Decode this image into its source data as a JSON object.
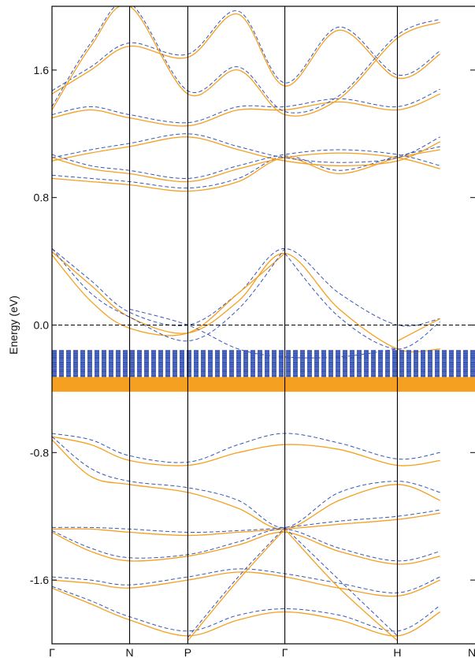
{
  "chart_data": {
    "type": "line",
    "title": "",
    "xlabel": "",
    "ylabel": "Energy (eV)",
    "ylim": [
      -2.0,
      2.0
    ],
    "grid": false,
    "legend": "none",
    "x_ticks": [
      {
        "label": "Γ",
        "x": 0.0
      },
      {
        "label": "N",
        "x": 1.0
      },
      {
        "label": "P",
        "x": 1.75
      },
      {
        "label": "Γ",
        "x": 3.0
      },
      {
        "label": "H",
        "x": 4.45
      },
      {
        "label": "N",
        "x": 5.45
      }
    ],
    "y_ticks": [
      {
        "label": "1.6",
        "value": 1.6
      },
      {
        "label": "0.8",
        "value": 0.8
      },
      {
        "label": "0.0",
        "value": 0.0
      },
      {
        "label": "-0.8",
        "value": -0.8
      },
      {
        "label": "-1.6",
        "value": -1.6
      }
    ],
    "fermi_level": 0.0,
    "colors": {
      "orange": "#f5a020",
      "blue": "#3a56b4",
      "axis": "#000000"
    },
    "series": [
      {
        "color": "orange",
        "style": "solid",
        "x": [
          0,
          0.5,
          1.0,
          1.75,
          2.4,
          3.0,
          3.7,
          4.45,
          5.0
        ],
        "y": [
          0.46,
          0.25,
          0.05,
          -0.05,
          0.15,
          0.45,
          0.1,
          -0.15,
          -0.15
        ]
      },
      {
        "color": "blue",
        "style": "dashed",
        "x": [
          0,
          0.5,
          1.0,
          1.75,
          2.4,
          3.0,
          3.7,
          4.45,
          5.0
        ],
        "y": [
          0.48,
          0.28,
          0.08,
          0.0,
          0.2,
          0.48,
          0.2,
          0.0,
          0.04
        ]
      },
      {
        "color": "orange",
        "style": "solid",
        "x": [
          0,
          0.5,
          1.0,
          1.75,
          2.4,
          3.0
        ],
        "y": [
          0.44,
          0.15,
          -0.02,
          -0.05,
          0.2,
          0.45
        ]
      },
      {
        "color": "blue",
        "style": "dashed",
        "x": [
          0,
          0.5,
          1.0,
          1.75,
          2.4,
          3.0
        ],
        "y": [
          0.48,
          0.2,
          0.05,
          -0.1,
          0.1,
          0.48
        ]
      },
      {
        "color": "blue",
        "style": "dashed",
        "x": [
          3.0,
          3.7,
          4.45,
          5.0
        ],
        "y": [
          0.45,
          0.05,
          -0.15,
          0.02
        ]
      },
      {
        "color": "orange",
        "style": "solid",
        "x": [
          4.45,
          5.0
        ],
        "y": [
          -0.1,
          0.04
        ]
      },
      {
        "color": "blue",
        "style": "dashed",
        "x": [
          1.0,
          1.75,
          2.4,
          3.0,
          3.7,
          4.45
        ],
        "y": [
          0.1,
          0.0,
          -0.15,
          -0.2,
          -0.2,
          -0.15
        ]
      },
      {
        "color": "orange",
        "style": "solid",
        "x": [
          0,
          0.5,
          1.0,
          1.75,
          2.4,
          3.0,
          3.7,
          4.45,
          5.0
        ],
        "y": [
          -0.7,
          -0.75,
          -0.85,
          -0.88,
          -0.8,
          -0.75,
          -0.78,
          -0.88,
          -0.85
        ]
      },
      {
        "color": "blue",
        "style": "dashed",
        "x": [
          0,
          0.5,
          1.0,
          1.75,
          2.4,
          3.0,
          3.7,
          4.45,
          5.0
        ],
        "y": [
          -0.68,
          -0.72,
          -0.82,
          -0.86,
          -0.75,
          -0.68,
          -0.74,
          -0.84,
          -0.8
        ]
      },
      {
        "color": "orange",
        "style": "solid",
        "x": [
          0,
          0.5,
          1.0,
          1.75,
          2.4,
          3.0,
          3.7,
          4.45,
          5.0
        ],
        "y": [
          -0.72,
          -0.95,
          -1.0,
          -1.05,
          -1.15,
          -1.28,
          -1.1,
          -1.0,
          -1.1
        ]
      },
      {
        "color": "blue",
        "style": "dashed",
        "x": [
          0,
          0.5,
          1.0,
          1.75,
          2.4,
          3.0,
          3.7,
          4.45,
          5.0
        ],
        "y": [
          -0.7,
          -0.9,
          -0.98,
          -1.02,
          -1.1,
          -1.27,
          -1.05,
          -0.98,
          -1.05
        ]
      },
      {
        "color": "orange",
        "style": "solid",
        "x": [
          0,
          0.5,
          1.0,
          1.75,
          2.4,
          3.0,
          3.7,
          4.45,
          5.0
        ],
        "y": [
          -1.28,
          -1.28,
          -1.3,
          -1.32,
          -1.3,
          -1.28,
          -1.25,
          -1.22,
          -1.18
        ]
      },
      {
        "color": "blue",
        "style": "dashed",
        "x": [
          0,
          0.5,
          1.0,
          1.75,
          2.4,
          3.0,
          3.7,
          4.45,
          5.0
        ],
        "y": [
          -1.27,
          -1.27,
          -1.28,
          -1.3,
          -1.29,
          -1.27,
          -1.23,
          -1.2,
          -1.16
        ]
      },
      {
        "color": "orange",
        "style": "solid",
        "x": [
          0,
          0.5,
          1.0,
          1.75,
          2.4,
          3.0,
          3.7,
          4.45,
          5.0
        ],
        "y": [
          -1.3,
          -1.42,
          -1.48,
          -1.45,
          -1.38,
          -1.3,
          -1.42,
          -1.5,
          -1.45
        ]
      },
      {
        "color": "blue",
        "style": "dashed",
        "x": [
          0,
          0.5,
          1.0,
          1.75,
          2.4,
          3.0,
          3.7,
          4.45,
          5.0
        ],
        "y": [
          -1.29,
          -1.4,
          -1.46,
          -1.44,
          -1.36,
          -1.28,
          -1.4,
          -1.48,
          -1.42
        ]
      },
      {
        "color": "orange",
        "style": "solid",
        "x": [
          0,
          0.5,
          1.0,
          1.75,
          2.4,
          3.0,
          3.7,
          4.45,
          5.0
        ],
        "y": [
          -1.6,
          -1.62,
          -1.65,
          -1.6,
          -1.55,
          -1.58,
          -1.65,
          -1.7,
          -1.6
        ]
      },
      {
        "color": "blue",
        "style": "dashed",
        "x": [
          0,
          0.5,
          1.0,
          1.75,
          2.4,
          3.0,
          3.7,
          4.45,
          5.0
        ],
        "y": [
          -1.58,
          -1.6,
          -1.63,
          -1.58,
          -1.53,
          -1.56,
          -1.62,
          -1.68,
          -1.58
        ]
      },
      {
        "color": "orange",
        "style": "solid",
        "x": [
          0,
          0.5,
          1.0,
          1.75,
          2.4,
          3.0,
          3.7,
          4.45,
          5.0
        ],
        "y": [
          -1.65,
          -1.75,
          -1.85,
          -1.95,
          -1.85,
          -1.8,
          -1.85,
          -1.95,
          -1.8
        ]
      },
      {
        "color": "blue",
        "style": "dashed",
        "x": [
          0,
          0.5,
          1.0,
          1.75,
          2.4,
          3.0,
          3.7,
          4.45,
          5.0
        ],
        "y": [
          -1.64,
          -1.73,
          -1.83,
          -1.92,
          -1.82,
          -1.78,
          -1.82,
          -1.92,
          -1.76
        ]
      },
      {
        "color": "orange",
        "style": "solid",
        "x": [
          3.0,
          3.7,
          4.45
        ],
        "y": [
          -1.28,
          -1.65,
          -1.98
        ]
      },
      {
        "color": "blue",
        "style": "dashed",
        "x": [
          3.0,
          3.7,
          4.45
        ],
        "y": [
          -1.27,
          -1.6,
          -1.95
        ]
      },
      {
        "color": "orange",
        "style": "solid",
        "x": [
          1.75,
          2.4,
          3.0
        ],
        "y": [
          -1.98,
          -1.6,
          -1.28
        ]
      },
      {
        "color": "blue",
        "style": "dashed",
        "x": [
          1.75,
          2.4,
          3.0
        ],
        "y": [
          -1.96,
          -1.58,
          -1.27
        ]
      },
      {
        "color": "orange",
        "style": "solid",
        "x": [
          0,
          0.5,
          1.0,
          1.75,
          2.4,
          3.0,
          3.7,
          4.45,
          5.0
        ],
        "y": [
          0.92,
          0.9,
          0.88,
          0.84,
          0.9,
          1.05,
          0.95,
          1.05,
          1.1
        ]
      },
      {
        "color": "blue",
        "style": "dashed",
        "x": [
          0,
          0.5,
          1.0,
          1.75,
          2.4,
          3.0,
          3.7,
          4.45,
          5.0
        ],
        "y": [
          0.94,
          0.92,
          0.9,
          0.86,
          0.92,
          1.06,
          0.97,
          1.06,
          1.12
        ]
      },
      {
        "color": "orange",
        "style": "solid",
        "x": [
          0,
          0.5,
          1.0,
          1.75,
          2.4,
          3.0,
          3.7,
          4.45,
          5.0
        ],
        "y": [
          1.03,
          1.08,
          1.12,
          1.18,
          1.1,
          1.03,
          1.0,
          1.03,
          1.15
        ]
      },
      {
        "color": "blue",
        "style": "dashed",
        "x": [
          0,
          0.5,
          1.0,
          1.75,
          2.4,
          3.0,
          3.7,
          4.45,
          5.0
        ],
        "y": [
          1.05,
          1.1,
          1.14,
          1.2,
          1.12,
          1.05,
          1.02,
          1.05,
          1.18
        ]
      },
      {
        "color": "orange",
        "style": "solid",
        "x": [
          0,
          0.5,
          1.0,
          1.75,
          2.4,
          3.0,
          3.7,
          4.45,
          5.0
        ],
        "y": [
          1.05,
          0.98,
          0.95,
          0.9,
          0.98,
          1.05,
          1.08,
          1.05,
          0.98
        ]
      },
      {
        "color": "blue",
        "style": "dashed",
        "x": [
          0,
          0.5,
          1.0,
          1.75,
          2.4,
          3.0,
          3.7,
          4.45,
          5.0
        ],
        "y": [
          1.07,
          1.0,
          0.97,
          0.92,
          1.0,
          1.07,
          1.1,
          1.07,
          1.0
        ]
      },
      {
        "color": "orange",
        "style": "solid",
        "x": [
          0,
          0.5,
          1.0,
          1.75,
          2.4,
          3.0,
          3.7,
          4.45,
          5.0
        ],
        "y": [
          1.3,
          1.35,
          1.3,
          1.25,
          1.35,
          1.35,
          1.4,
          1.35,
          1.45
        ]
      },
      {
        "color": "blue",
        "style": "dashed",
        "x": [
          0,
          0.5,
          1.0,
          1.75,
          2.4,
          3.0,
          3.7,
          4.45,
          5.0
        ],
        "y": [
          1.32,
          1.37,
          1.32,
          1.27,
          1.37,
          1.37,
          1.42,
          1.37,
          1.48
        ]
      },
      {
        "color": "orange",
        "style": "solid",
        "x": [
          0,
          0.5,
          1.0,
          1.75,
          2.4,
          3.0,
          3.7,
          4.45,
          5.0
        ],
        "y": [
          1.45,
          1.6,
          1.75,
          1.68,
          1.95,
          1.5,
          1.85,
          1.55,
          1.7
        ]
      },
      {
        "color": "blue",
        "style": "dashed",
        "x": [
          0,
          0.5,
          1.0,
          1.75,
          2.4,
          3.0,
          3.7,
          4.45,
          5.0
        ],
        "y": [
          1.47,
          1.62,
          1.77,
          1.7,
          1.97,
          1.52,
          1.87,
          1.57,
          1.72
        ]
      },
      {
        "color": "orange",
        "style": "solid",
        "x": [
          0,
          0.5,
          1.0,
          1.75,
          2.4,
          3.0,
          3.7,
          4.45,
          5.0
        ],
        "y": [
          1.35,
          1.75,
          2.0,
          1.45,
          1.6,
          1.32,
          1.42,
          1.8,
          1.9
        ]
      },
      {
        "color": "blue",
        "style": "dashed",
        "x": [
          0,
          0.5,
          1.0,
          1.75,
          2.4,
          3.0,
          3.7,
          4.45,
          5.0
        ],
        "y": [
          1.37,
          1.77,
          2.02,
          1.47,
          1.62,
          1.34,
          1.44,
          1.82,
          1.92
        ]
      }
    ]
  }
}
